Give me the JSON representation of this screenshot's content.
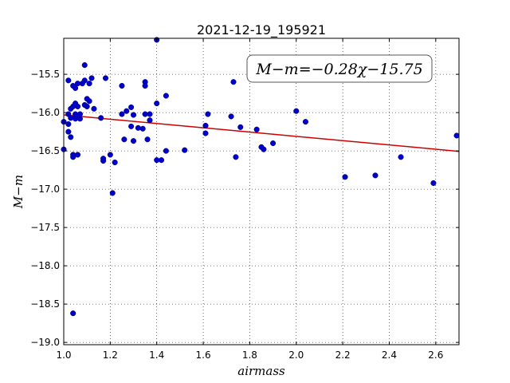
{
  "chart_data": {
    "type": "scatter",
    "title": "2021-12-19_195921",
    "xlabel": "airmass",
    "ylabel": "M−m",
    "annotation": "M−m=−0.28χ−15.75",
    "xlim": [
      1.0,
      2.7
    ],
    "ylim": [
      -19.03,
      -15.03
    ],
    "y_inverted": true,
    "grid": true,
    "x_ticks": [
      1.0,
      1.2,
      1.4,
      1.6,
      1.8,
      2.0,
      2.2,
      2.4,
      2.6
    ],
    "x_tick_labels": [
      "1.0",
      "1.2",
      "1.4",
      "1.6",
      "1.8",
      "2.0",
      "2.2",
      "2.4",
      "2.6"
    ],
    "y_ticks": [
      -15.5,
      -16.0,
      -16.5,
      -17.0,
      -17.5,
      -18.0,
      -18.5,
      -19.0
    ],
    "y_tick_labels": [
      "−15.5",
      "−16.0",
      "−16.5",
      "−17.0",
      "−17.5",
      "−18.0",
      "−18.5",
      "−19.0"
    ],
    "points_color": "#0000cc",
    "fit_color": "#cc0000",
    "fit": {
      "slope": -0.28,
      "intercept": -15.75
    },
    "points": [
      [
        1.0,
        -16.12
      ],
      [
        1.0,
        -16.48
      ],
      [
        1.02,
        -15.58
      ],
      [
        1.02,
        -16.02
      ],
      [
        1.02,
        -16.15
      ],
      [
        1.02,
        -16.25
      ],
      [
        1.03,
        -15.95
      ],
      [
        1.03,
        -16.32
      ],
      [
        1.03,
        -16.07
      ],
      [
        1.04,
        -15.65
      ],
      [
        1.04,
        -15.92
      ],
      [
        1.04,
        -16.55
      ],
      [
        1.04,
        -16.58
      ],
      [
        1.05,
        -15.68
      ],
      [
        1.05,
        -15.88
      ],
      [
        1.05,
        -16.02
      ],
      [
        1.05,
        -16.05
      ],
      [
        1.05,
        -16.08
      ],
      [
        1.04,
        -18.62
      ],
      [
        1.06,
        -15.62
      ],
      [
        1.06,
        -15.92
      ],
      [
        1.07,
        -16.02
      ],
      [
        1.07,
        -16.08
      ],
      [
        1.06,
        -16.55
      ],
      [
        1.08,
        -15.62
      ],
      [
        1.09,
        -15.58
      ],
      [
        1.09,
        -15.9
      ],
      [
        1.09,
        -15.38
      ],
      [
        1.1,
        -15.82
      ],
      [
        1.1,
        -15.92
      ],
      [
        1.11,
        -15.62
      ],
      [
        1.11,
        -15.85
      ],
      [
        1.12,
        -15.55
      ],
      [
        1.13,
        -15.95
      ],
      [
        1.16,
        -16.07
      ],
      [
        1.17,
        -16.63
      ],
      [
        1.17,
        -16.6
      ],
      [
        1.18,
        -15.55
      ],
      [
        1.2,
        -16.55
      ],
      [
        1.21,
        -17.05
      ],
      [
        1.22,
        -16.65
      ],
      [
        1.25,
        -15.65
      ],
      [
        1.25,
        -16.02
      ],
      [
        1.26,
        -16.35
      ],
      [
        1.27,
        -15.98
      ],
      [
        1.29,
        -15.93
      ],
      [
        1.29,
        -16.18
      ],
      [
        1.3,
        -16.03
      ],
      [
        1.3,
        -16.37
      ],
      [
        1.32,
        -16.2
      ],
      [
        1.34,
        -16.21
      ],
      [
        1.35,
        -15.6
      ],
      [
        1.35,
        -15.65
      ],
      [
        1.35,
        -16.02
      ],
      [
        1.36,
        -16.35
      ],
      [
        1.37,
        -16.02
      ],
      [
        1.37,
        -16.1
      ],
      [
        1.4,
        -15.05
      ],
      [
        1.4,
        -15.88
      ],
      [
        1.4,
        -16.62
      ],
      [
        1.42,
        -16.62
      ],
      [
        1.44,
        -16.5
      ],
      [
        1.44,
        -15.78
      ],
      [
        1.52,
        -16.49
      ],
      [
        1.61,
        -16.27
      ],
      [
        1.61,
        -16.17
      ],
      [
        1.62,
        -16.02
      ],
      [
        1.72,
        -16.05
      ],
      [
        1.73,
        -15.6
      ],
      [
        1.74,
        -16.58
      ],
      [
        1.76,
        -16.19
      ],
      [
        1.83,
        -16.22
      ],
      [
        1.85,
        -16.45
      ],
      [
        1.86,
        -16.48
      ],
      [
        1.9,
        -16.4
      ],
      [
        2.0,
        -15.98
      ],
      [
        2.04,
        -16.12
      ],
      [
        2.21,
        -16.84
      ],
      [
        2.34,
        -16.82
      ],
      [
        2.45,
        -16.58
      ],
      [
        2.59,
        -16.92
      ],
      [
        2.69,
        -16.3
      ]
    ]
  }
}
